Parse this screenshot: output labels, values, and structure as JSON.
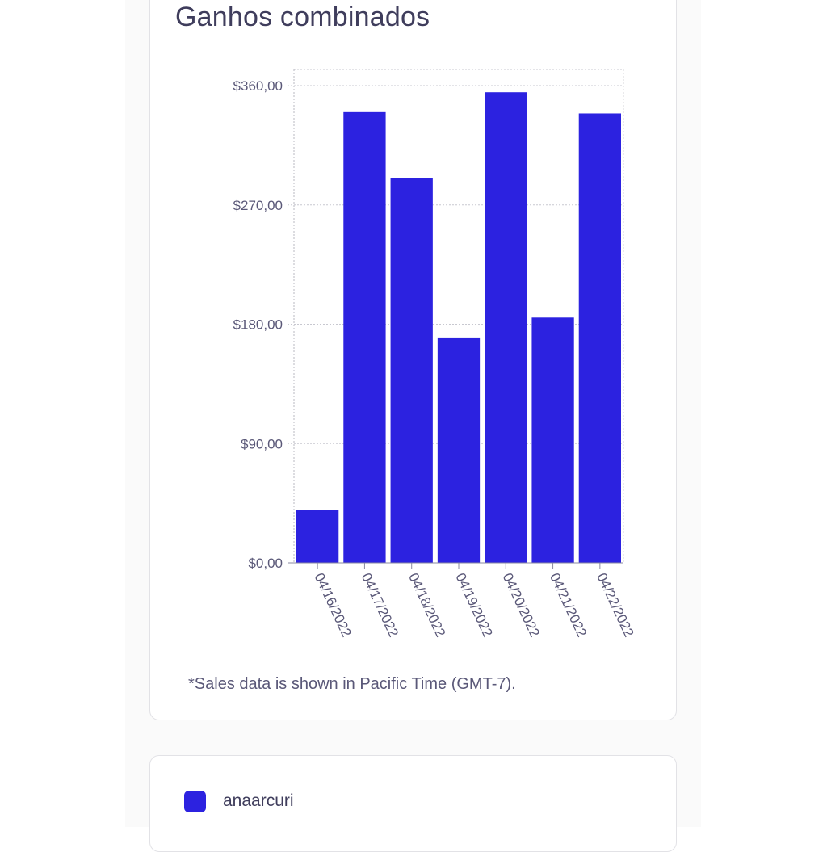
{
  "chart_card": {
    "title": "Ganhos combinados",
    "footnote": "*Sales data is shown in Pacific Time (GMT-7)."
  },
  "legend": {
    "items": [
      {
        "label": "anaarcuri",
        "color": "#2c22e0"
      }
    ]
  },
  "chart_data": {
    "type": "bar",
    "title": "Ganhos combinados",
    "xlabel": "",
    "ylabel": "",
    "categories": [
      "04/16/2022",
      "04/17/2022",
      "04/18/2022",
      "04/19/2022",
      "04/20/2022",
      "04/21/2022",
      "04/22/2022"
    ],
    "series": [
      {
        "name": "anaarcuri",
        "color": "#2c22e0",
        "values": [
          40,
          340,
          290,
          170,
          355,
          185,
          339
        ]
      }
    ],
    "ylim": [
      0,
      360
    ],
    "yticks": [
      0,
      90,
      180,
      270,
      360
    ],
    "ytick_labels": [
      "$0,00",
      "$90,00",
      "$180,00",
      "$270,00",
      "$360,00"
    ],
    "grid": true,
    "legend_position": "bottom"
  }
}
